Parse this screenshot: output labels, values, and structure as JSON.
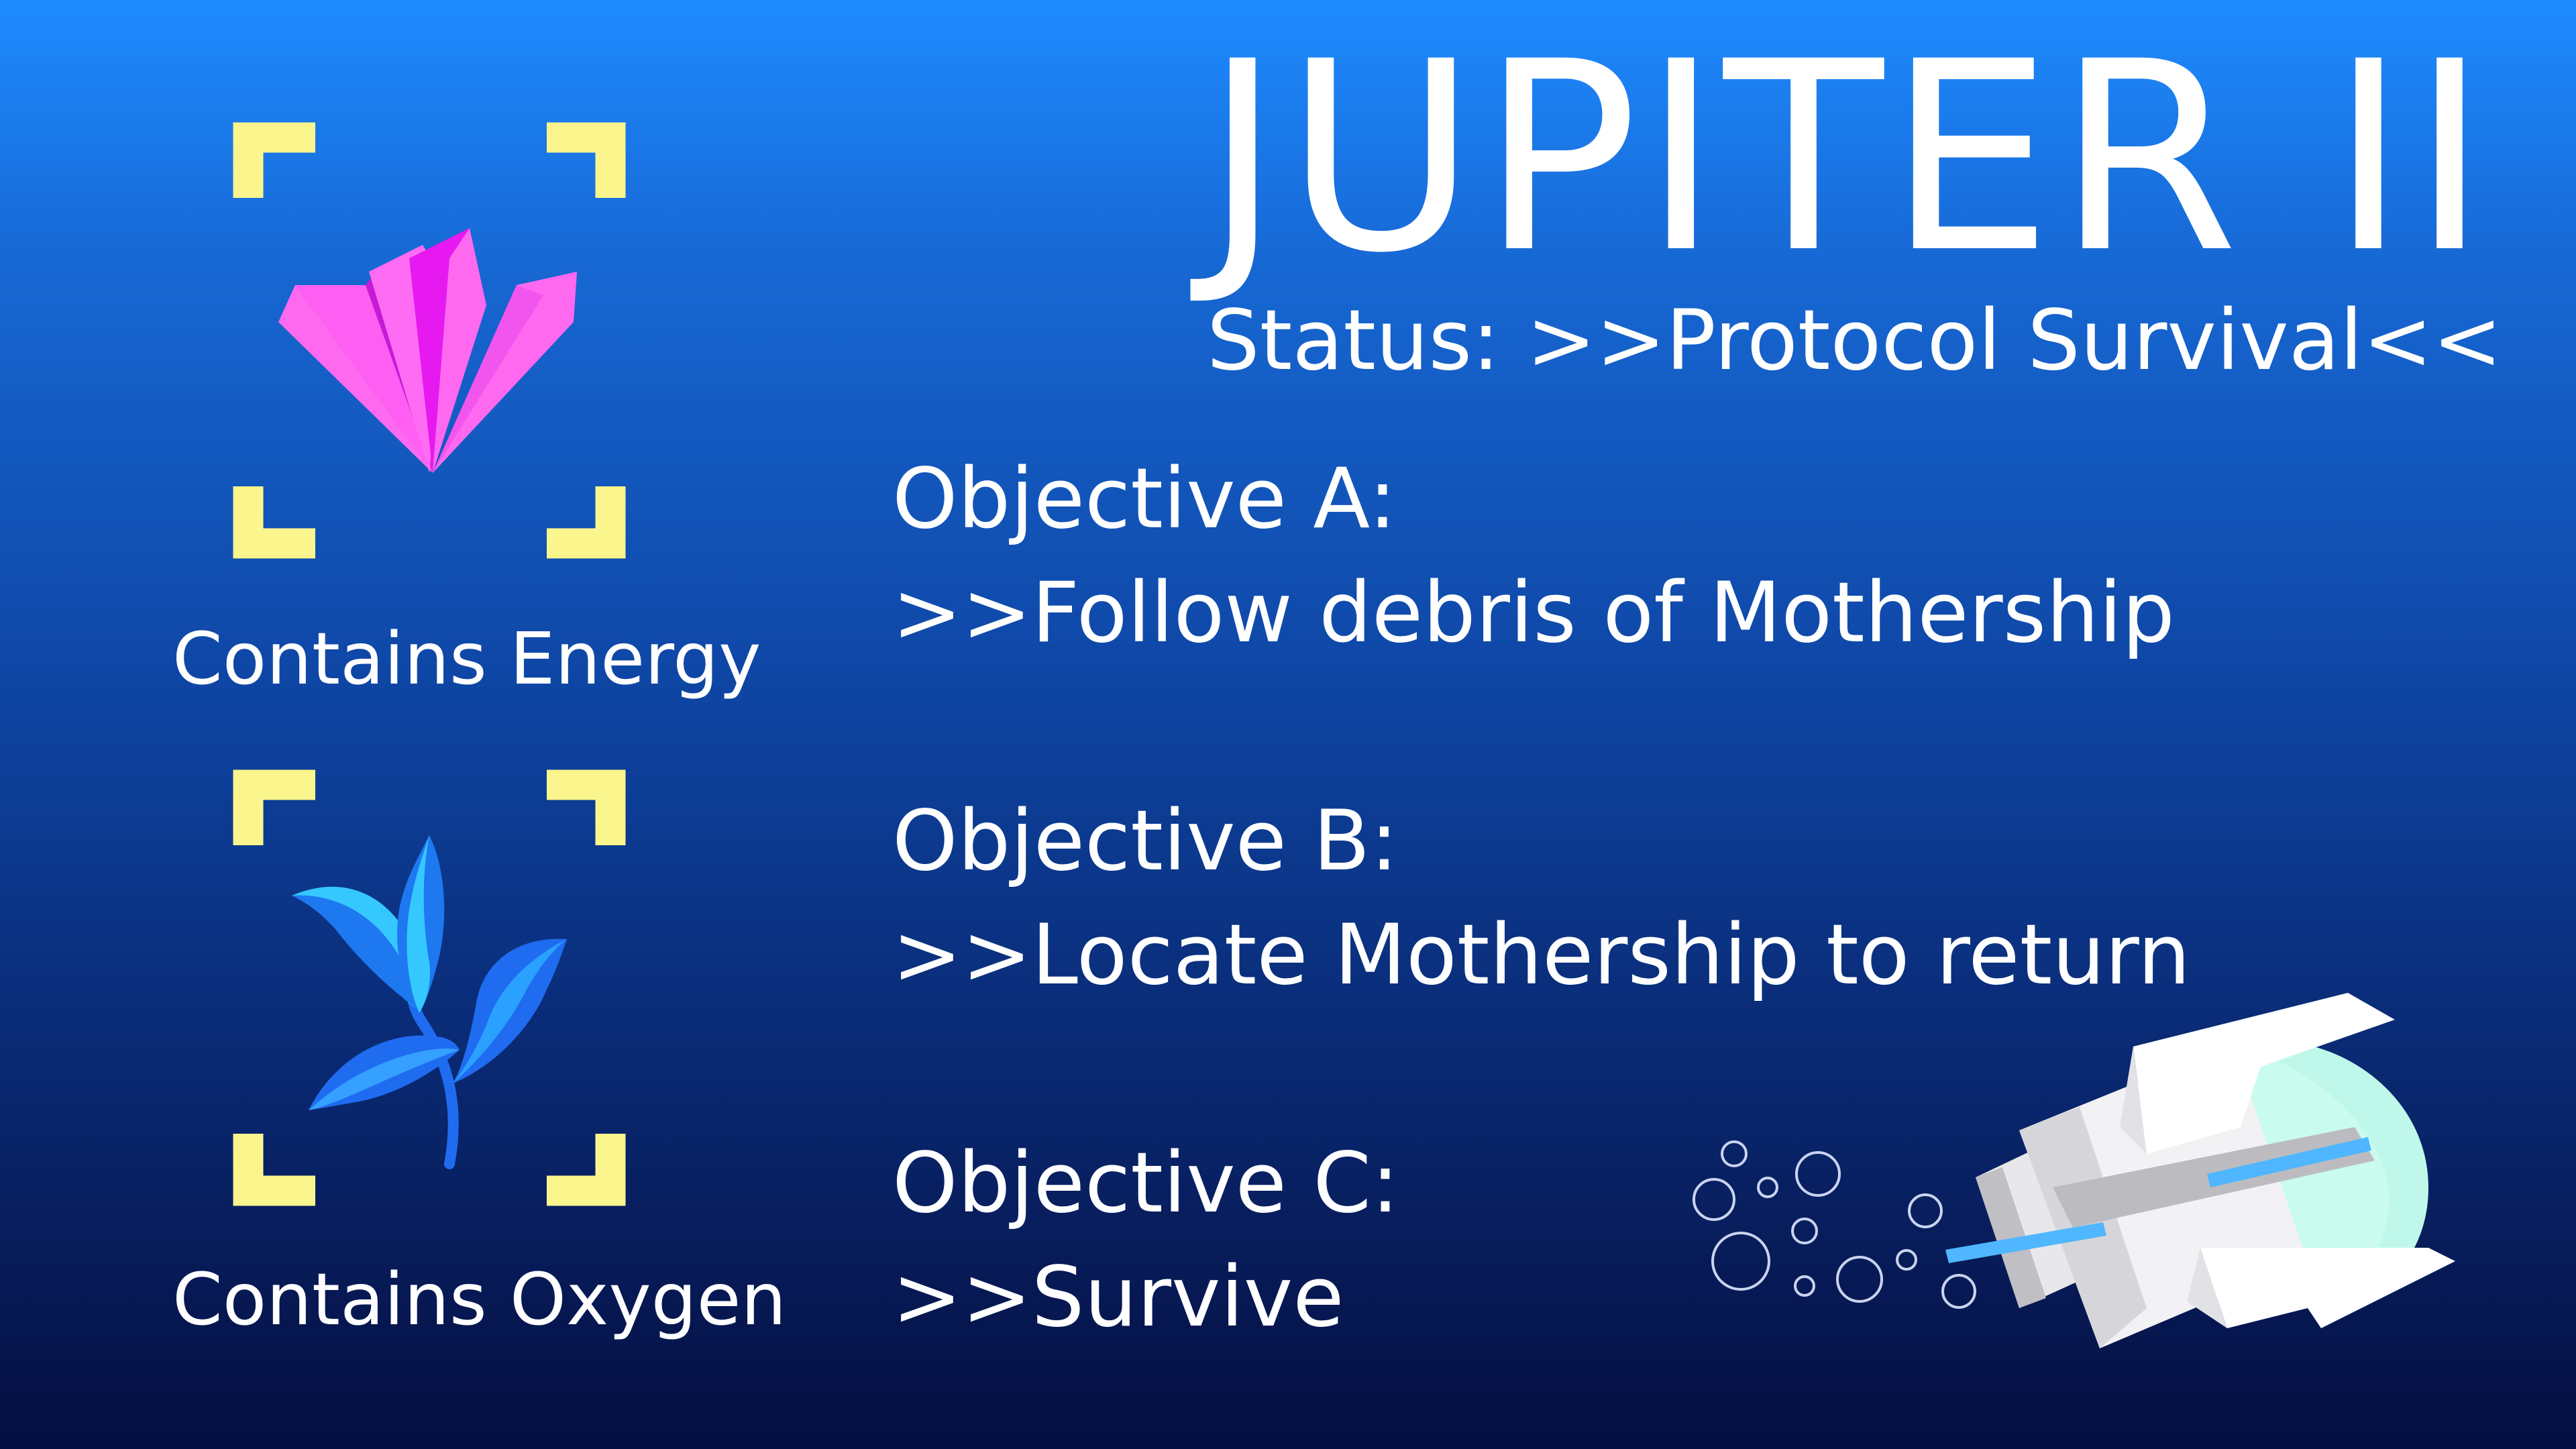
{
  "hud": {
    "title": "JUPITER II",
    "status": "Status: >>Protocol Survival<<"
  },
  "objectives": [
    {
      "heading": "Objective A:",
      "detail": ">>Follow debris of Mothership"
    },
    {
      "heading": "Objective B:",
      "detail": ">>Locate Mothership to return"
    },
    {
      "heading": "Objective C:",
      "detail": ">>Survive"
    }
  ],
  "resources": [
    {
      "icon": "crystal-icon",
      "caption": "Contains Energy"
    },
    {
      "icon": "plant-icon",
      "caption": "Contains Oxygen"
    }
  ],
  "colors": {
    "bracket": "#fbf58e",
    "crystal_light": "#ff69f0",
    "crystal_dark": "#e61af0",
    "plant_light": "#35c8ff",
    "plant_dark": "#1f6cf0"
  },
  "icons": {
    "ship": "submarine-icon",
    "bubbles": "bubbles-icon"
  }
}
